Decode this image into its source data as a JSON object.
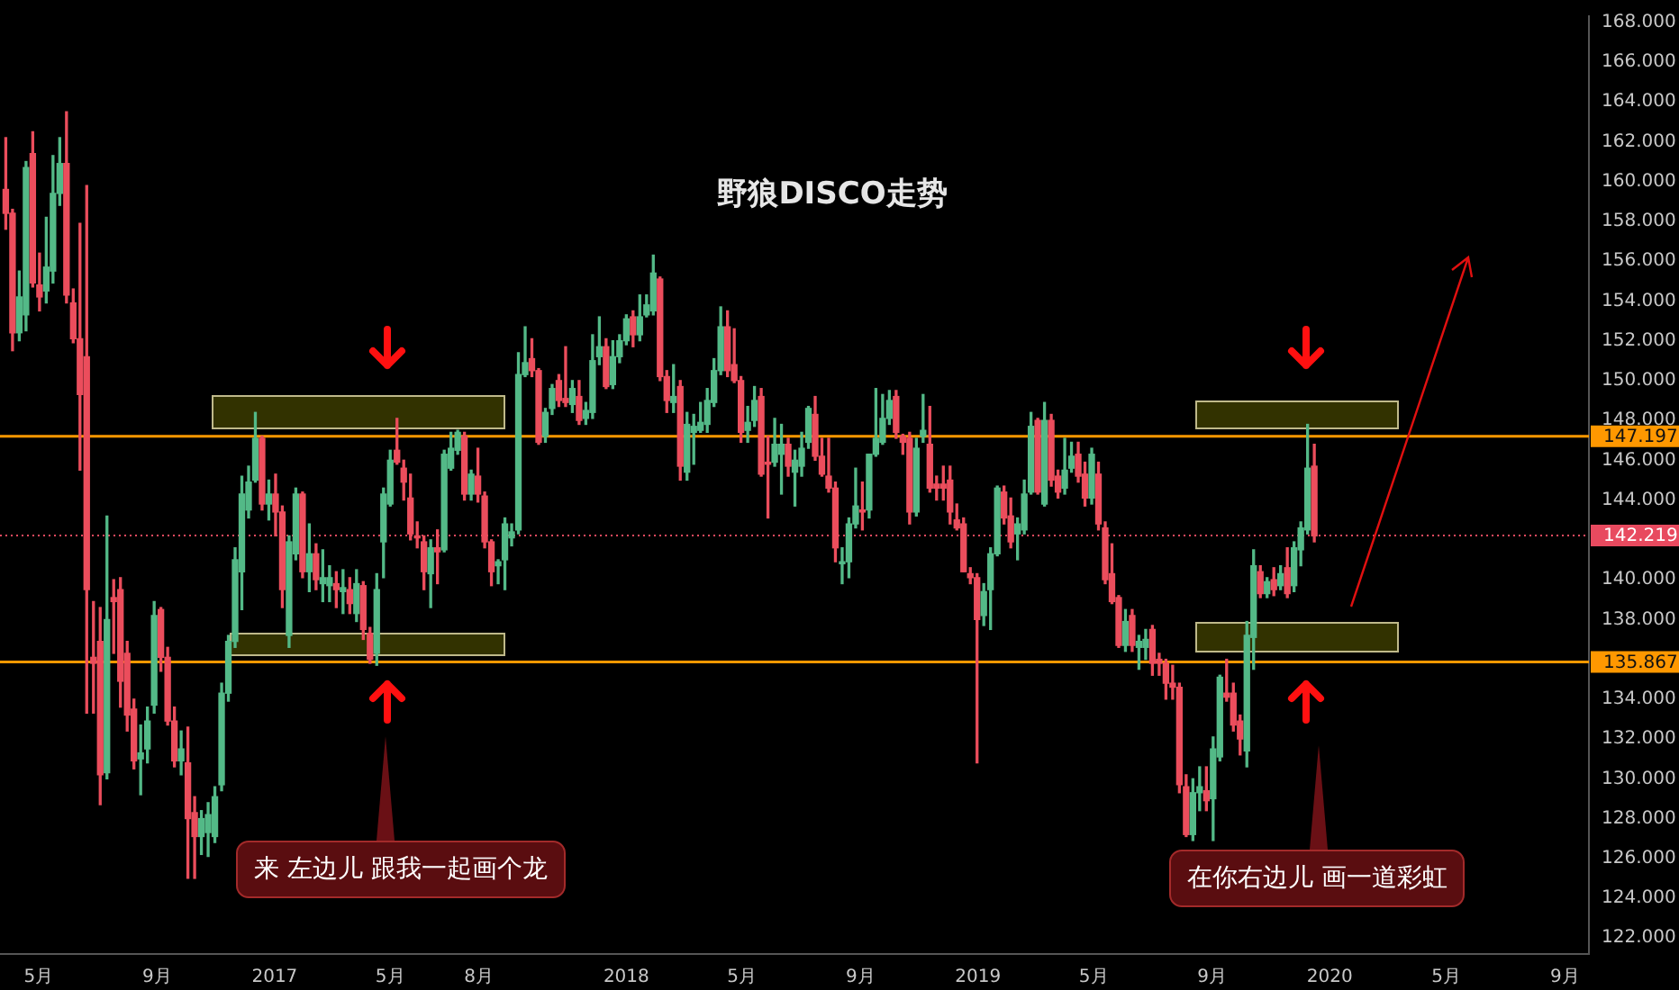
{
  "chart_data": {
    "type": "candlestick",
    "title": "野狼DISCO走势",
    "x": [
      "2016-03-28",
      "2016-04-04",
      "2016-04-11",
      "2016-04-18",
      "2016-04-25",
      "2016-05-02",
      "2016-05-09",
      "2016-05-16",
      "2016-05-23",
      "2016-05-30",
      "2016-06-06",
      "2016-06-13",
      "2016-06-20",
      "2016-06-27",
      "2016-07-04",
      "2016-07-11",
      "2016-07-18",
      "2016-07-25",
      "2016-08-01",
      "2016-08-08",
      "2016-08-15",
      "2016-08-22",
      "2016-08-29",
      "2016-09-05",
      "2016-09-12",
      "2016-09-19",
      "2016-09-26",
      "2016-10-03",
      "2016-10-10",
      "2016-10-17",
      "2016-10-24",
      "2016-10-31",
      "2016-11-07",
      "2016-11-14",
      "2016-11-21",
      "2016-11-28",
      "2016-12-05",
      "2016-12-12",
      "2016-12-19",
      "2016-12-26",
      "2017-01-02",
      "2017-01-09",
      "2017-01-16",
      "2017-01-23",
      "2017-01-30",
      "2017-02-06",
      "2017-02-13",
      "2017-02-20",
      "2017-02-27",
      "2017-03-06",
      "2017-03-13",
      "2017-03-20",
      "2017-03-27",
      "2017-04-03",
      "2017-04-10",
      "2017-04-17",
      "2017-04-24",
      "2017-05-01",
      "2017-05-08",
      "2017-05-15",
      "2017-05-22",
      "2017-05-29",
      "2017-06-05",
      "2017-06-12",
      "2017-06-19",
      "2017-06-26",
      "2017-07-03",
      "2017-07-10",
      "2017-07-17",
      "2017-07-24",
      "2017-07-31",
      "2017-08-07",
      "2017-08-14",
      "2017-08-21",
      "2017-08-28",
      "2017-09-04",
      "2017-09-11",
      "2017-09-18",
      "2017-09-25",
      "2017-10-02",
      "2017-10-09",
      "2017-10-16",
      "2017-10-23",
      "2017-10-30",
      "2017-11-06",
      "2017-11-13",
      "2017-11-20",
      "2017-11-27",
      "2017-12-04",
      "2017-12-11",
      "2017-12-18",
      "2017-12-25",
      "2018-01-01",
      "2018-01-08",
      "2018-01-15",
      "2018-01-22",
      "2018-01-29",
      "2018-02-05",
      "2018-02-12",
      "2018-02-19",
      "2018-02-26",
      "2018-03-05",
      "2018-03-12",
      "2018-03-19",
      "2018-03-26",
      "2018-04-02",
      "2018-04-09",
      "2018-04-16",
      "2018-04-23",
      "2018-04-30",
      "2018-05-07",
      "2018-05-14",
      "2018-05-21",
      "2018-05-28",
      "2018-06-04",
      "2018-06-11",
      "2018-06-18",
      "2018-06-25",
      "2018-07-02",
      "2018-07-09",
      "2018-07-16",
      "2018-07-23",
      "2018-07-30",
      "2018-08-06",
      "2018-08-13",
      "2018-08-20",
      "2018-08-27",
      "2018-09-03",
      "2018-09-10",
      "2018-09-17",
      "2018-09-24",
      "2018-10-01",
      "2018-10-08",
      "2018-10-15",
      "2018-10-22",
      "2018-10-29",
      "2018-11-05",
      "2018-11-12",
      "2018-11-19",
      "2018-11-26",
      "2018-12-03",
      "2018-12-10",
      "2018-12-17",
      "2018-12-24",
      "2018-12-31",
      "2019-01-07",
      "2019-01-14",
      "2019-01-21",
      "2019-01-28",
      "2019-02-04",
      "2019-02-11",
      "2019-02-18",
      "2019-02-25",
      "2019-03-04",
      "2019-03-11",
      "2019-03-18",
      "2019-03-25",
      "2019-04-01",
      "2019-04-08",
      "2019-04-15",
      "2019-04-22",
      "2019-04-29",
      "2019-05-06",
      "2019-05-13",
      "2019-05-20",
      "2019-05-27",
      "2019-06-03",
      "2019-06-10",
      "2019-06-17",
      "2019-06-24",
      "2019-07-01",
      "2019-07-08",
      "2019-07-15",
      "2019-07-22",
      "2019-07-29",
      "2019-08-05",
      "2019-08-12",
      "2019-08-19",
      "2019-08-26",
      "2019-09-02",
      "2019-09-09",
      "2019-09-16",
      "2019-09-23",
      "2019-09-30",
      "2019-10-07",
      "2019-10-14",
      "2019-10-21",
      "2019-10-28",
      "2019-11-04",
      "2019-11-11",
      "2019-11-18",
      "2019-11-25",
      "2019-12-02",
      "2019-12-09",
      "2019-12-16"
    ],
    "ohlc": [
      [
        159.6,
        162.2,
        157.6,
        158.4
      ],
      [
        158.4,
        158.6,
        151.5,
        152.4
      ],
      [
        152.4,
        155.5,
        152.0,
        154.2
      ],
      [
        153.3,
        161.0,
        152.5,
        160.7
      ],
      [
        161.4,
        162.5,
        154.7,
        154.9
      ],
      [
        154.8,
        156.4,
        153.5,
        154.2
      ],
      [
        154.5,
        158.2,
        153.9,
        155.7
      ],
      [
        155.5,
        161.3,
        154.9,
        159.4
      ],
      [
        159.4,
        162.2,
        158.8,
        160.9
      ],
      [
        160.9,
        163.5,
        153.9,
        154.3
      ],
      [
        153.9,
        154.6,
        151.9,
        152.1
      ],
      [
        152.1,
        157.9,
        145.5,
        149.3
      ],
      [
        151.2,
        159.8,
        133.3,
        139.5
      ],
      [
        136.1,
        138.9,
        133.3,
        135.8
      ],
      [
        136.9,
        138.6,
        128.7,
        130.2
      ],
      [
        130.3,
        143.2,
        130.0,
        138.0
      ],
      [
        139.1,
        140.0,
        136.3,
        138.9
      ],
      [
        139.5,
        140.1,
        133.6,
        134.9
      ],
      [
        136.3,
        136.9,
        132.4,
        133.2
      ],
      [
        133.5,
        134.0,
        130.5,
        130.9
      ],
      [
        131.0,
        132.7,
        129.2,
        131.3
      ],
      [
        131.5,
        133.6,
        130.8,
        132.9
      ],
      [
        133.7,
        138.9,
        133.3,
        138.2
      ],
      [
        138.5,
        138.6,
        135.4,
        136.1
      ],
      [
        136.1,
        136.6,
        132.7,
        132.9
      ],
      [
        132.9,
        133.6,
        130.6,
        130.9
      ],
      [
        130.9,
        132.4,
        130.2,
        131.5
      ],
      [
        130.8,
        132.6,
        125.0,
        128.0
      ],
      [
        128.3,
        129.1,
        125.0,
        127.1
      ],
      [
        127.1,
        128.4,
        126.2,
        128.0
      ],
      [
        127.3,
        128.8,
        126.1,
        128.2
      ],
      [
        127.1,
        129.6,
        126.8,
        129.1
      ],
      [
        129.7,
        134.8,
        129.4,
        134.3
      ],
      [
        134.3,
        137.2,
        133.9,
        136.9
      ],
      [
        136.9,
        141.6,
        136.6,
        141.0
      ],
      [
        140.4,
        145.2,
        138.5,
        144.3
      ],
      [
        143.5,
        145.7,
        143.1,
        144.9
      ],
      [
        145.0,
        148.4,
        144.9,
        147.1
      ],
      [
        147.1,
        147.2,
        143.5,
        143.8
      ],
      [
        143.8,
        145.0,
        143.0,
        144.3
      ],
      [
        144.3,
        145.3,
        142.2,
        143.4
      ],
      [
        143.4,
        143.7,
        138.6,
        139.5
      ],
      [
        137.2,
        142.2,
        136.6,
        141.9
      ],
      [
        141.3,
        144.6,
        141.0,
        144.3
      ],
      [
        144.3,
        144.4,
        140.1,
        140.4
      ],
      [
        140.4,
        142.8,
        139.4,
        141.3
      ],
      [
        141.3,
        141.8,
        139.5,
        140.0
      ],
      [
        139.8,
        141.5,
        138.9,
        140.1
      ],
      [
        139.7,
        140.7,
        138.9,
        140.1
      ],
      [
        139.8,
        140.4,
        138.6,
        139.5
      ],
      [
        139.4,
        140.5,
        138.3,
        139.6
      ],
      [
        139.5,
        140.1,
        138.3,
        138.8
      ],
      [
        138.3,
        140.5,
        137.9,
        139.8
      ],
      [
        139.7,
        139.9,
        137.0,
        137.5
      ],
      [
        137.3,
        137.6,
        135.8,
        136.0
      ],
      [
        136.3,
        140.3,
        135.7,
        139.5
      ],
      [
        141.9,
        144.6,
        140.1,
        144.3
      ],
      [
        143.8,
        146.5,
        143.7,
        146.0
      ],
      [
        146.5,
        148.1,
        145.8,
        145.9
      ],
      [
        145.6,
        146.0,
        144.0,
        144.9
      ],
      [
        144.1,
        145.3,
        142.0,
        142.3
      ],
      [
        142.2,
        142.9,
        141.6,
        142.1
      ],
      [
        141.9,
        142.2,
        139.5,
        140.4
      ],
      [
        140.3,
        142.0,
        138.6,
        141.6
      ],
      [
        141.6,
        142.5,
        139.8,
        141.4
      ],
      [
        141.5,
        146.5,
        141.4,
        146.3
      ],
      [
        145.6,
        147.4,
        145.5,
        146.6
      ],
      [
        146.5,
        147.5,
        146.3,
        147.4
      ],
      [
        147.2,
        147.4,
        144.0,
        144.3
      ],
      [
        144.3,
        145.5,
        144.0,
        145.3
      ],
      [
        145.2,
        146.6,
        143.9,
        144.3
      ],
      [
        144.2,
        144.4,
        141.6,
        141.9
      ],
      [
        141.9,
        142.0,
        139.7,
        140.4
      ],
      [
        140.7,
        141.0,
        139.8,
        140.9
      ],
      [
        141.0,
        143.1,
        139.5,
        142.8
      ],
      [
        142.1,
        142.8,
        141.7,
        142.4
      ],
      [
        142.5,
        151.4,
        142.3,
        150.3
      ],
      [
        150.3,
        152.7,
        150.2,
        150.9
      ],
      [
        151.1,
        152.1,
        150.2,
        150.5
      ],
      [
        150.5,
        150.6,
        146.8,
        146.9
      ],
      [
        147.2,
        148.6,
        146.9,
        148.4
      ],
      [
        148.6,
        149.8,
        148.3,
        149.6
      ],
      [
        150.0,
        150.3,
        148.7,
        149.0
      ],
      [
        149.1,
        151.7,
        148.7,
        148.9
      ],
      [
        148.8,
        150.0,
        148.4,
        149.6
      ],
      [
        149.2,
        150.0,
        147.8,
        148.0
      ],
      [
        148.1,
        148.9,
        147.8,
        148.5
      ],
      [
        148.4,
        152.3,
        148.1,
        151.0
      ],
      [
        151.2,
        153.2,
        150.8,
        151.7
      ],
      [
        151.7,
        152.1,
        149.6,
        149.7
      ],
      [
        149.8,
        152.0,
        149.6,
        151.2
      ],
      [
        151.2,
        152.3,
        150.9,
        152.0
      ],
      [
        152.0,
        153.3,
        151.8,
        153.1
      ],
      [
        153.2,
        153.5,
        151.7,
        152.3
      ],
      [
        152.3,
        154.3,
        152.0,
        153.2
      ],
      [
        153.3,
        154.3,
        153.2,
        153.8
      ],
      [
        153.5,
        156.3,
        153.3,
        155.4
      ],
      [
        155.1,
        155.2,
        150.0,
        150.2
      ],
      [
        150.2,
        150.5,
        148.4,
        149.0
      ],
      [
        148.9,
        150.8,
        148.4,
        149.2
      ],
      [
        149.7,
        150.0,
        145.0,
        145.7
      ],
      [
        145.4,
        148.4,
        145.0,
        147.8
      ],
      [
        147.4,
        148.3,
        145.8,
        147.7
      ],
      [
        147.5,
        148.9,
        147.4,
        147.9
      ],
      [
        147.8,
        149.6,
        147.4,
        149.0
      ],
      [
        148.9,
        151.1,
        148.7,
        150.5
      ],
      [
        150.5,
        153.7,
        150.3,
        152.7
      ],
      [
        152.7,
        153.5,
        150.2,
        150.5
      ],
      [
        150.8,
        152.6,
        149.9,
        150.0
      ],
      [
        150.0,
        150.2,
        146.9,
        147.4
      ],
      [
        147.5,
        148.7,
        146.9,
        147.9
      ],
      [
        148.0,
        149.7,
        147.7,
        149.0
      ],
      [
        149.2,
        149.6,
        145.2,
        145.3
      ],
      [
        145.9,
        147.2,
        143.1,
        145.8
      ],
      [
        145.9,
        148.1,
        145.7,
        146.8
      ],
      [
        146.3,
        147.8,
        144.3,
        146.8
      ],
      [
        146.8,
        147.1,
        145.2,
        145.7
      ],
      [
        145.4,
        146.5,
        143.7,
        146.0
      ],
      [
        145.7,
        147.4,
        145.2,
        146.6
      ],
      [
        146.9,
        148.7,
        146.6,
        148.6
      ],
      [
        148.3,
        149.2,
        146.0,
        146.2
      ],
      [
        146.2,
        147.1,
        145.2,
        145.3
      ],
      [
        145.2,
        147.1,
        144.4,
        144.6
      ],
      [
        144.6,
        144.9,
        140.9,
        141.6
      ],
      [
        140.8,
        141.6,
        139.8,
        140.9
      ],
      [
        140.9,
        143.1,
        140.1,
        142.8
      ],
      [
        142.8,
        145.6,
        142.6,
        143.7
      ],
      [
        143.5,
        144.9,
        142.5,
        143.4
      ],
      [
        143.5,
        146.3,
        143.1,
        146.3
      ],
      [
        146.3,
        149.6,
        146.2,
        147.1
      ],
      [
        146.9,
        149.3,
        146.8,
        148.1
      ],
      [
        148.1,
        149.5,
        147.8,
        149.0
      ],
      [
        149.2,
        149.5,
        147.1,
        147.4
      ],
      [
        147.2,
        147.3,
        146.3,
        146.9
      ],
      [
        147.1,
        147.4,
        142.8,
        143.4
      ],
      [
        143.4,
        147.1,
        143.2,
        146.6
      ],
      [
        147.2,
        149.3,
        146.9,
        147.5
      ],
      [
        146.8,
        148.7,
        144.4,
        144.6
      ],
      [
        144.8,
        145.2,
        144.0,
        144.6
      ],
      [
        144.8,
        145.7,
        144.0,
        144.6
      ],
      [
        145.0,
        145.7,
        142.8,
        143.4
      ],
      [
        143.0,
        143.8,
        142.5,
        142.6
      ],
      [
        142.8,
        143.1,
        140.4,
        140.4
      ],
      [
        140.3,
        140.6,
        139.8,
        140.1
      ],
      [
        140.1,
        140.3,
        130.8,
        138.0
      ],
      [
        138.2,
        139.8,
        137.7,
        139.4
      ],
      [
        139.5,
        141.6,
        137.5,
        141.3
      ],
      [
        141.3,
        144.7,
        141.2,
        144.6
      ],
      [
        144.4,
        144.7,
        142.8,
        143.1
      ],
      [
        143.2,
        144.1,
        141.6,
        141.9
      ],
      [
        142.3,
        143.1,
        141.0,
        142.8
      ],
      [
        142.5,
        145.0,
        142.3,
        144.3
      ],
      [
        144.4,
        148.4,
        144.3,
        147.7
      ],
      [
        148.0,
        148.1,
        144.3,
        144.4
      ],
      [
        143.8,
        148.9,
        143.7,
        148.0
      ],
      [
        148.0,
        148.3,
        144.7,
        145.0
      ],
      [
        145.2,
        145.5,
        144.1,
        144.4
      ],
      [
        144.6,
        147.1,
        144.3,
        145.5
      ],
      [
        145.6,
        146.9,
        145.4,
        146.2
      ],
      [
        146.3,
        146.9,
        144.9,
        145.2
      ],
      [
        145.3,
        145.9,
        143.7,
        144.1
      ],
      [
        144.1,
        146.6,
        143.8,
        146.3
      ],
      [
        145.3,
        145.9,
        142.5,
        142.8
      ],
      [
        142.6,
        142.9,
        139.8,
        140.0
      ],
      [
        140.3,
        141.8,
        138.8,
        138.9
      ],
      [
        139.1,
        139.2,
        136.6,
        136.7
      ],
      [
        136.7,
        138.5,
        136.4,
        137.9
      ],
      [
        138.2,
        138.5,
        136.4,
        136.7
      ],
      [
        136.6,
        137.2,
        135.5,
        136.9
      ],
      [
        136.6,
        137.5,
        136.0,
        137.0
      ],
      [
        137.5,
        137.7,
        135.2,
        135.8
      ],
      [
        136.0,
        136.3,
        135.2,
        135.8
      ],
      [
        135.8,
        136.0,
        134.0,
        134.8
      ],
      [
        134.8,
        135.7,
        134.0,
        134.6
      ],
      [
        134.6,
        134.8,
        129.3,
        129.7
      ],
      [
        129.6,
        130.2,
        127.1,
        127.2
      ],
      [
        127.2,
        130.0,
        126.9,
        129.3
      ],
      [
        129.3,
        130.6,
        128.4,
        129.6
      ],
      [
        129.4,
        130.6,
        128.4,
        128.9
      ],
      [
        129.0,
        132.1,
        126.9,
        131.5
      ],
      [
        131.1,
        135.2,
        130.9,
        135.1
      ],
      [
        134.3,
        136.0,
        133.9,
        134.1
      ],
      [
        134.3,
        134.8,
        132.4,
        132.7
      ],
      [
        132.9,
        133.2,
        131.2,
        132.0
      ],
      [
        131.4,
        137.9,
        130.6,
        137.2
      ],
      [
        137.1,
        141.5,
        135.5,
        140.7
      ],
      [
        140.4,
        140.7,
        139.1,
        139.3
      ],
      [
        139.3,
        140.1,
        139.1,
        139.9
      ],
      [
        140.0,
        140.6,
        139.2,
        139.5
      ],
      [
        139.7,
        140.7,
        139.5,
        140.3
      ],
      [
        140.6,
        141.6,
        139.1,
        139.3
      ],
      [
        139.7,
        141.9,
        139.4,
        141.6
      ],
      [
        141.5,
        142.9,
        140.7,
        142.6
      ],
      [
        142.5,
        147.8,
        142.3,
        145.6
      ],
      [
        145.7,
        146.8,
        141.9,
        142.2
      ]
    ],
    "xlim": [
      "2016-03-22",
      "2020-09-26"
    ],
    "xticks": [
      {
        "value": "2016-05-01",
        "label": "5月"
      },
      {
        "value": "2016-09-01",
        "label": "9月"
      },
      {
        "value": "2017-01-01",
        "label": "2017"
      },
      {
        "value": "2017-05-01",
        "label": "5月"
      },
      {
        "value": "2017-08-01",
        "label": "8月"
      },
      {
        "value": "2018-01-01",
        "label": "2018"
      },
      {
        "value": "2018-05-01",
        "label": "5月"
      },
      {
        "value": "2018-09-01",
        "label": "9月"
      },
      {
        "value": "2019-01-01",
        "label": "2019"
      },
      {
        "value": "2019-05-01",
        "label": "5月"
      },
      {
        "value": "2019-09-01",
        "label": "9月"
      },
      {
        "value": "2020-01-01",
        "label": "2020"
      },
      {
        "value": "2020-05-01",
        "label": "5月"
      },
      {
        "value": "2020-09-01",
        "label": "9月"
      }
    ],
    "ylim": [
      121.2,
      168.3
    ],
    "yticks": [
      {
        "value": 122,
        "label": "122.000"
      },
      {
        "value": 124,
        "label": "124.000"
      },
      {
        "value": 126,
        "label": "126.000"
      },
      {
        "value": 128,
        "label": "128.000"
      },
      {
        "value": 130,
        "label": "130.000"
      },
      {
        "value": 132,
        "label": "132.000"
      },
      {
        "value": 134,
        "label": "134.000"
      },
      {
        "value": 136,
        "label": null
      },
      {
        "value": 138,
        "label": "138.000"
      },
      {
        "value": 140,
        "label": "140.000"
      },
      {
        "value": 144,
        "label": "144.000"
      },
      {
        "value": 146,
        "label": "146.000"
      },
      {
        "value": 148,
        "label": "148.000"
      },
      {
        "value": 150,
        "label": "150.000"
      },
      {
        "value": 152,
        "label": "152.000"
      },
      {
        "value": 154,
        "label": "154.000"
      },
      {
        "value": 156,
        "label": "156.000"
      },
      {
        "value": 158,
        "label": "158.000"
      },
      {
        "value": 160,
        "label": "160.000"
      },
      {
        "value": 162,
        "label": "162.000"
      },
      {
        "value": 164,
        "label": "164.000"
      },
      {
        "value": 166,
        "label": "166.000"
      },
      {
        "value": 168,
        "label": "168.000"
      }
    ],
    "ref_lines": [
      {
        "axis": "y",
        "value": 147.197,
        "label": "147.197",
        "color": "#ff9800"
      },
      {
        "axis": "y",
        "value": 135.867,
        "label": "135.867",
        "color": "#ff9800"
      },
      {
        "axis": "y",
        "value": 142.219,
        "label": "142.219",
        "color": "#e84a5f",
        "line_style": "dotted"
      }
    ],
    "annotations": [
      "来 左边儿 跟我一起画个龙",
      "在你右边儿 画一道彩虹"
    ],
    "grid": false,
    "legend": false
  }
}
